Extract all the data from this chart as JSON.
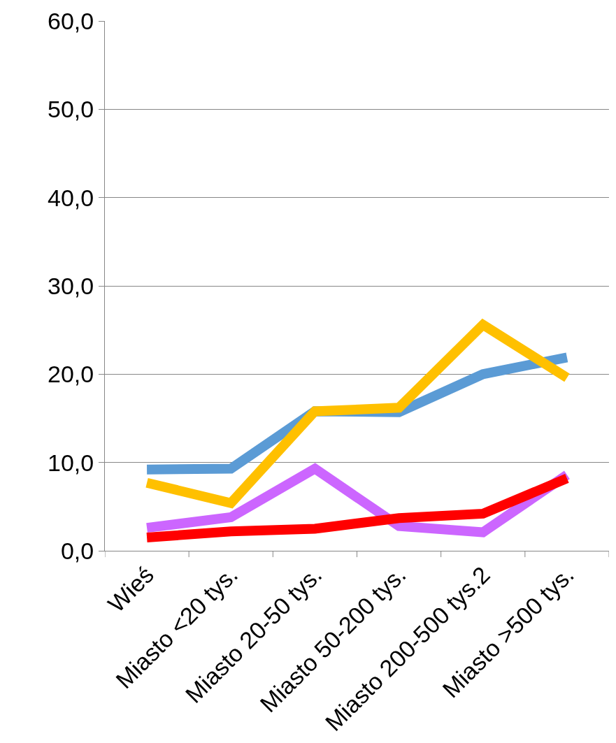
{
  "chart_data": {
    "type": "line",
    "categories": [
      "Wieś",
      "Miasto <20 tys.",
      "Miasto 20-50 tys.",
      "Miasto 50-200 tys.",
      "Miasto 200-500 tys.2",
      "Miasto >500 tys."
    ],
    "series": [
      {
        "color": "#5b9bd5",
        "values": [
          9.2,
          9.3,
          15.8,
          15.7,
          20.0,
          21.9
        ]
      },
      {
        "color": "#ffc000",
        "values": [
          7.7,
          5.4,
          15.8,
          16.2,
          25.6,
          19.6
        ]
      },
      {
        "color": "#cc66ff",
        "values": [
          2.6,
          3.8,
          9.3,
          2.8,
          2.1,
          8.6
        ]
      },
      {
        "color": "#ff0000",
        "values": [
          1.5,
          2.2,
          2.5,
          3.7,
          4.2,
          8.2
        ]
      }
    ],
    "ylim": [
      0,
      60
    ],
    "yticks": [
      {
        "value": 0,
        "label": "0,0"
      },
      {
        "value": 10,
        "label": "10,0"
      },
      {
        "value": 20,
        "label": "20,0"
      },
      {
        "value": 30,
        "label": "30,0"
      },
      {
        "value": 40,
        "label": "40,0"
      },
      {
        "value": 50,
        "label": "50,0"
      },
      {
        "value": 60,
        "label": "60,0"
      }
    ],
    "grid": "y",
    "legend": false,
    "marker": "none",
    "line_style": "solid"
  }
}
